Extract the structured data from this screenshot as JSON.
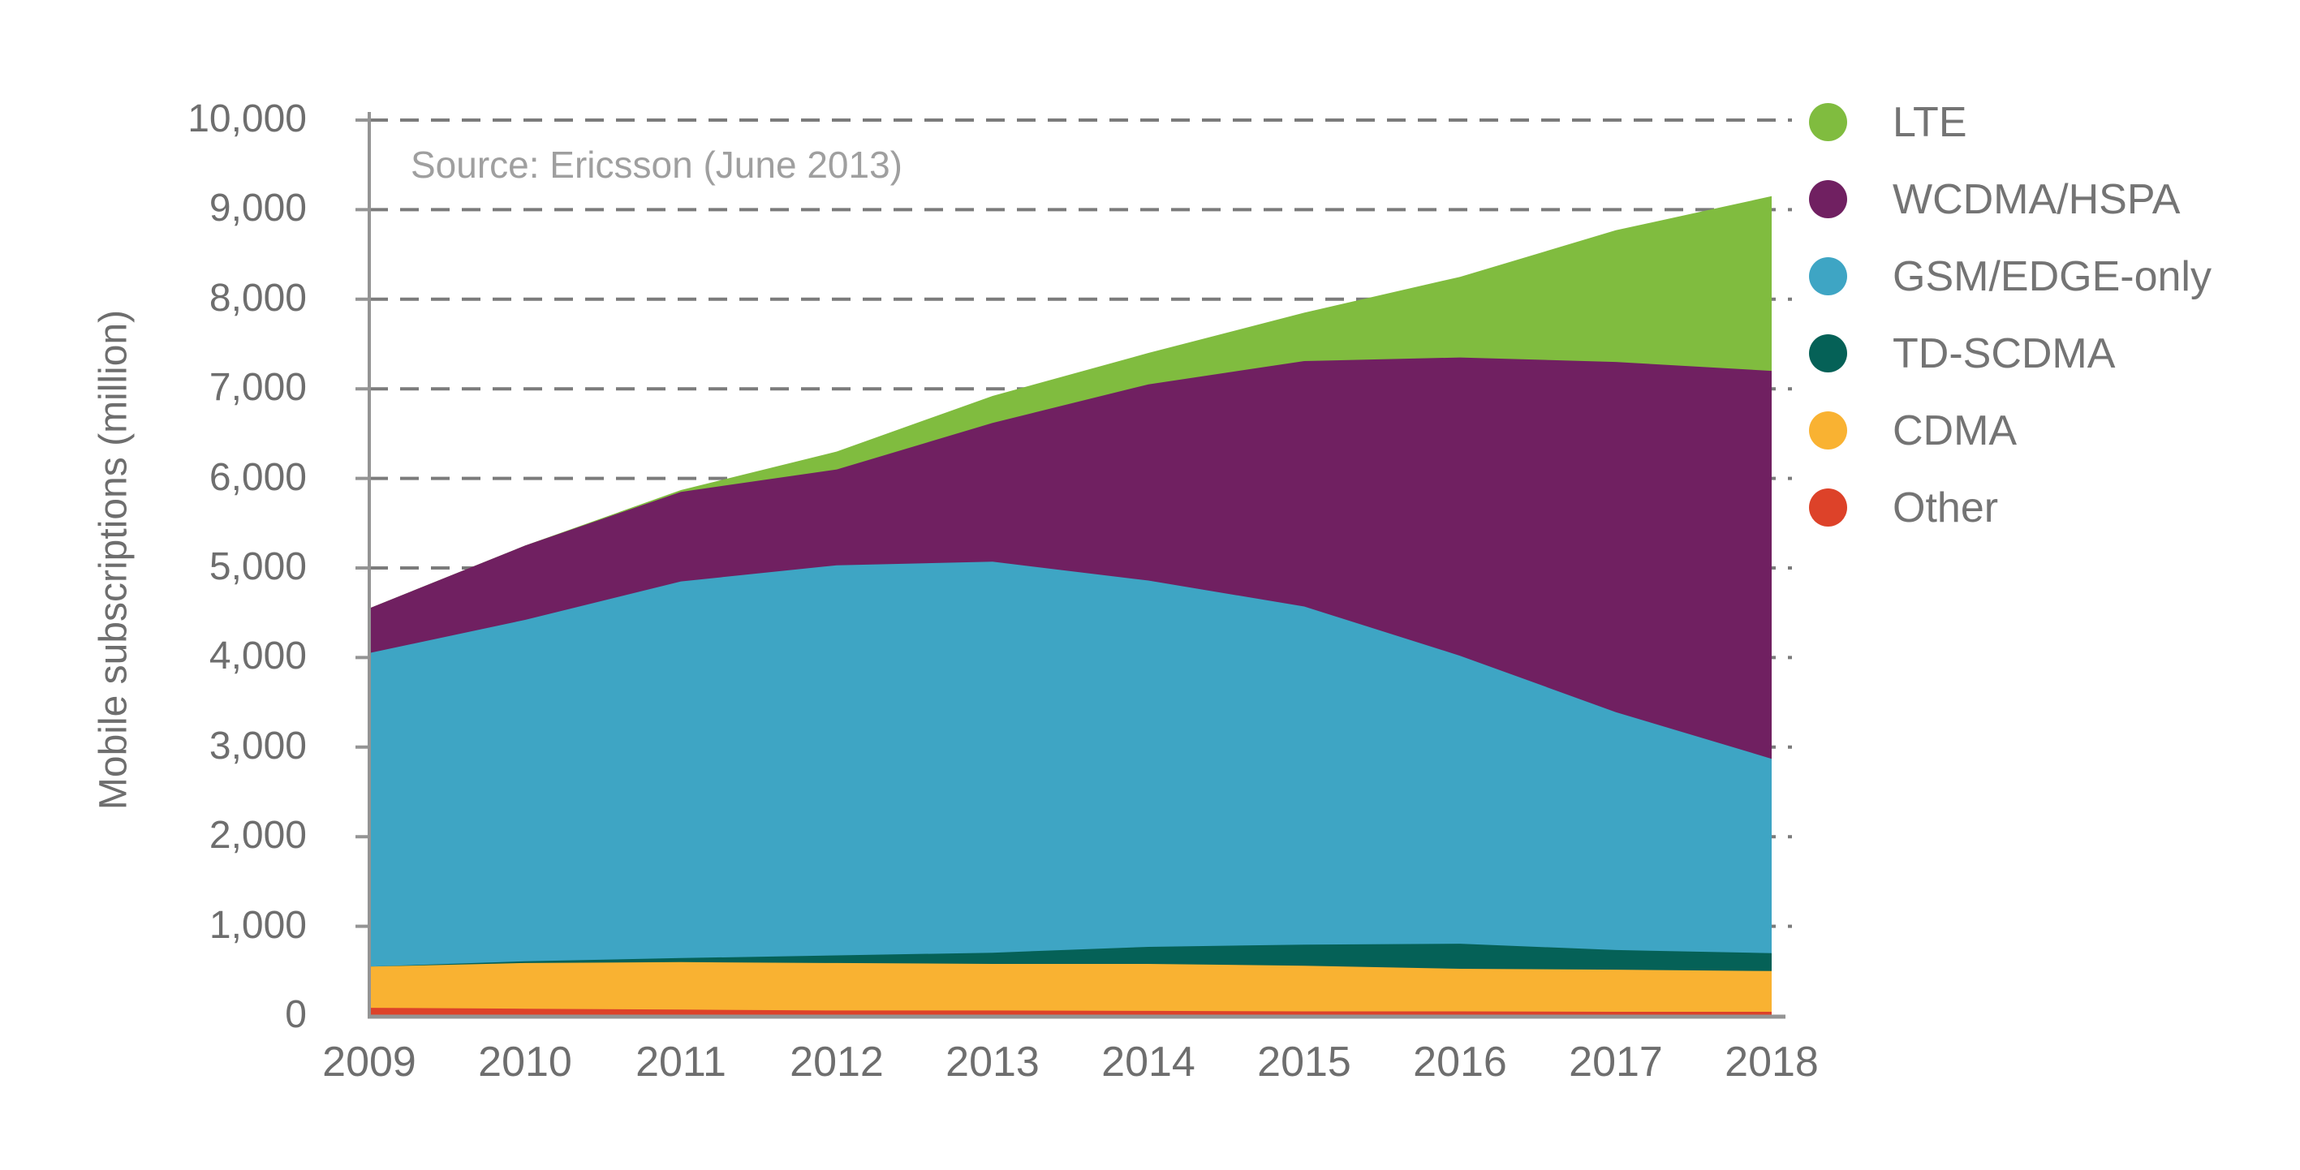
{
  "chart_data": {
    "type": "area",
    "stacked": true,
    "title": "",
    "source_note": "Source: Ericsson (June 2013)",
    "ylabel": "Mobile subscriptions (million)",
    "xlabel": "",
    "x": [
      2009,
      2010,
      2011,
      2012,
      2013,
      2014,
      2015,
      2016,
      2017,
      2018
    ],
    "ylim": [
      0,
      10000
    ],
    "ytick_step": 1000,
    "grid": "horizontal-dashed",
    "legend_position": "right-top",
    "series": [
      {
        "name": "Other",
        "color": "#DD4229",
        "values": [
          90,
          80,
          70,
          60,
          60,
          55,
          50,
          50,
          45,
          45
        ]
      },
      {
        "name": "CDMA",
        "color": "#F9B232",
        "values": [
          460,
          510,
          530,
          530,
          520,
          525,
          510,
          475,
          470,
          455
        ]
      },
      {
        "name": "TD-SCDMA",
        "color": "#056157",
        "values": [
          0,
          20,
          45,
          85,
          125,
          190,
          235,
          280,
          220,
          200
        ]
      },
      {
        "name": "GSM/EDGE-only",
        "color": "#3EA5C4",
        "values": [
          3500,
          3810,
          4205,
          4355,
          4365,
          4090,
          3775,
          3215,
          2655,
          2170
        ]
      },
      {
        "name": "WCDMA/HSPA",
        "color": "#702061",
        "values": [
          500,
          830,
          1000,
          1070,
          1550,
          2190,
          2740,
          3330,
          3910,
          4330
        ]
      },
      {
        "name": "LTE",
        "color": "#80BC3F",
        "values": [
          0,
          0,
          20,
          200,
          300,
          350,
          540,
          900,
          1470,
          1950
        ]
      }
    ],
    "stack_totals": [
      4550,
      5250,
      5870,
      6300,
      6920,
      7400,
      7850,
      8250,
      8770,
      9150
    ]
  },
  "axis": {
    "ytick_labels": [
      "10,000",
      "9,000",
      "8,000",
      "7,000",
      "6,000",
      "5,000",
      "4,000",
      "3,000",
      "2,000",
      "1,000",
      "0"
    ],
    "ytick_values": [
      10000,
      9000,
      8000,
      7000,
      6000,
      5000,
      4000,
      3000,
      2000,
      1000,
      0
    ],
    "xtick_labels": [
      "2009",
      "2010",
      "2011",
      "2012",
      "2013",
      "2014",
      "2015",
      "2016",
      "2017",
      "2018"
    ]
  },
  "legend": {
    "items": [
      {
        "label": "LTE",
        "color": "#80BC3F"
      },
      {
        "label": "WCDMA/HSPA",
        "color": "#702061"
      },
      {
        "label": "GSM/EDGE-only",
        "color": "#3EA5C4"
      },
      {
        "label": "TD-SCDMA",
        "color": "#056157"
      },
      {
        "label": "CDMA",
        "color": "#F9B232"
      },
      {
        "label": "Other",
        "color": "#DD4229"
      }
    ]
  },
  "style_colors": {
    "gridline": "#7b7b7b",
    "axis_line": "#949494",
    "tick_text": "#6e6e6e",
    "source_text": "#9f9f9f",
    "legend_text": "#747474"
  }
}
